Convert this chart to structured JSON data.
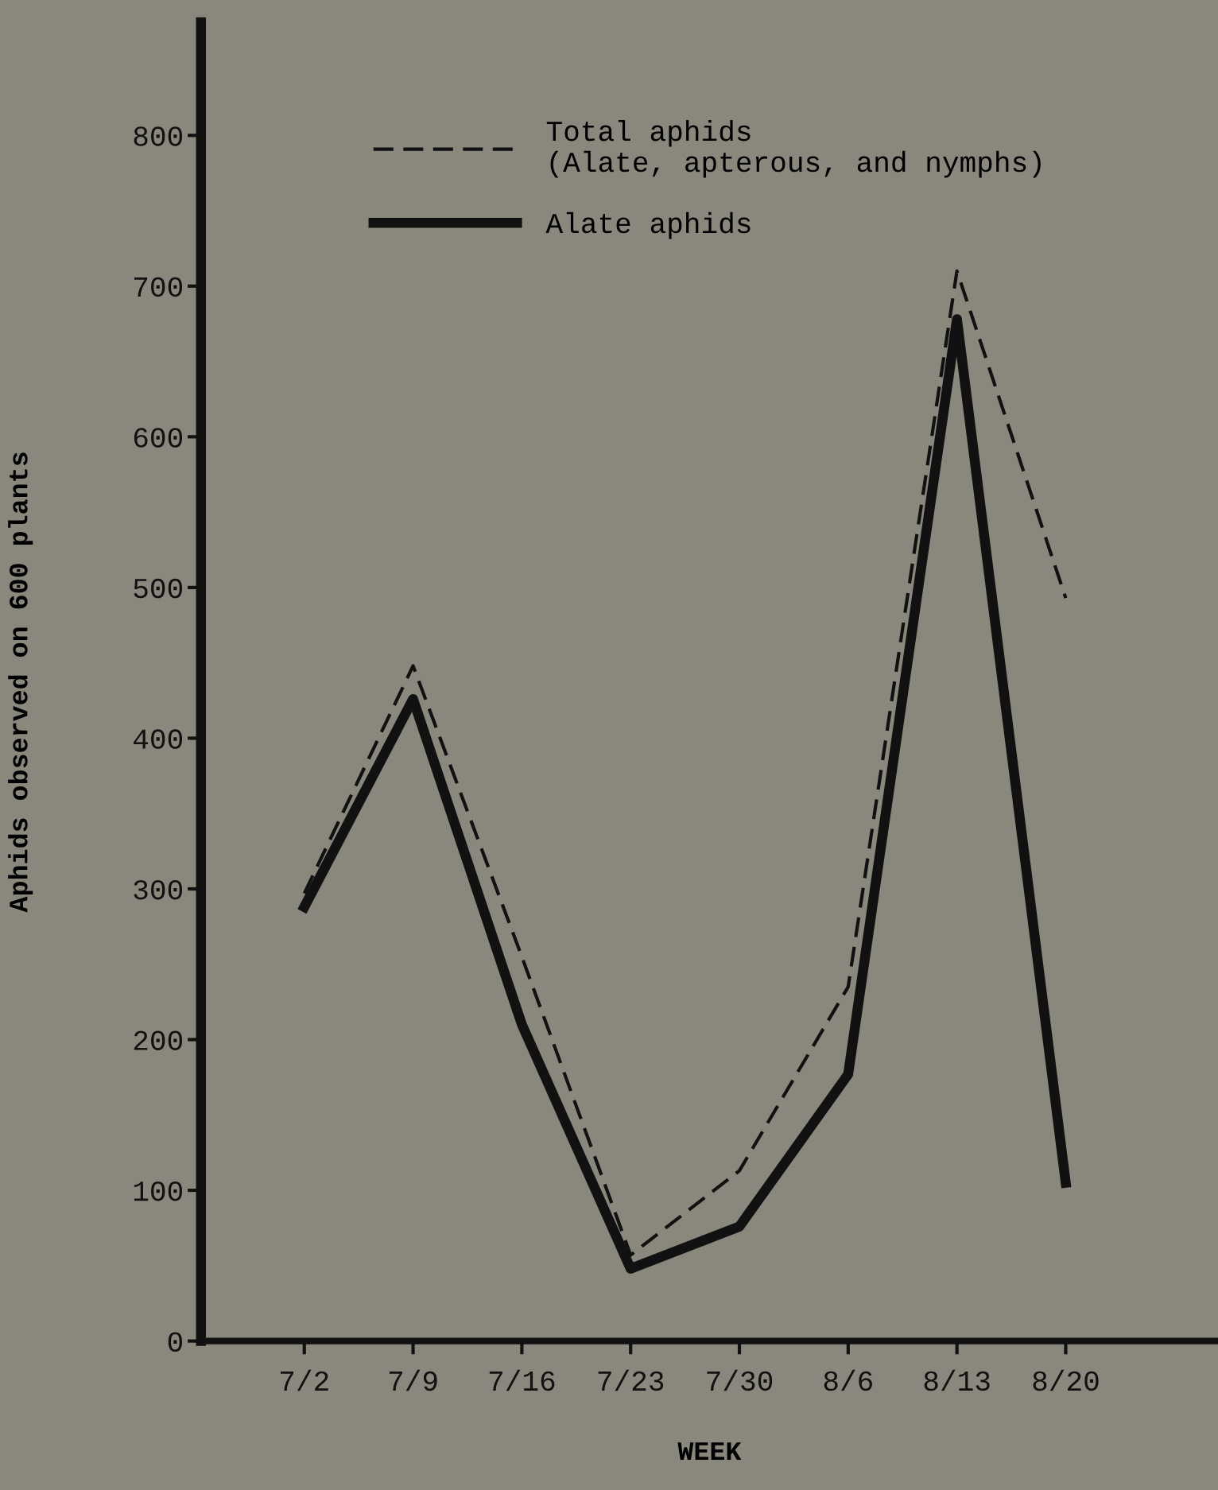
{
  "chart_data": {
    "type": "line",
    "xlabel": "WEEK",
    "ylabel": "Aphids observed on 600 plants",
    "categories": [
      "7/2",
      "7/9",
      "7/16",
      "7/23",
      "7/30",
      "8/6",
      "8/13",
      "8/20"
    ],
    "series": [
      {
        "name": "Total aphids\n(Alate, apterous, and nymphs)",
        "color": "#111111",
        "line_style": "dashed",
        "values": [
          297,
          448,
          255,
          57,
          113,
          235,
          710,
          493
        ]
      },
      {
        "name": "Alate aphids",
        "color": "#111111",
        "line_style": "solid",
        "values": [
          288,
          426,
          210,
          48,
          76,
          177,
          678,
          105
        ]
      }
    ],
    "ylim": [
      0,
      875
    ],
    "yticks": [
      0,
      100,
      200,
      300,
      400,
      500,
      600,
      700,
      800
    ],
    "grid": false,
    "legend": "top",
    "marker": "none"
  }
}
